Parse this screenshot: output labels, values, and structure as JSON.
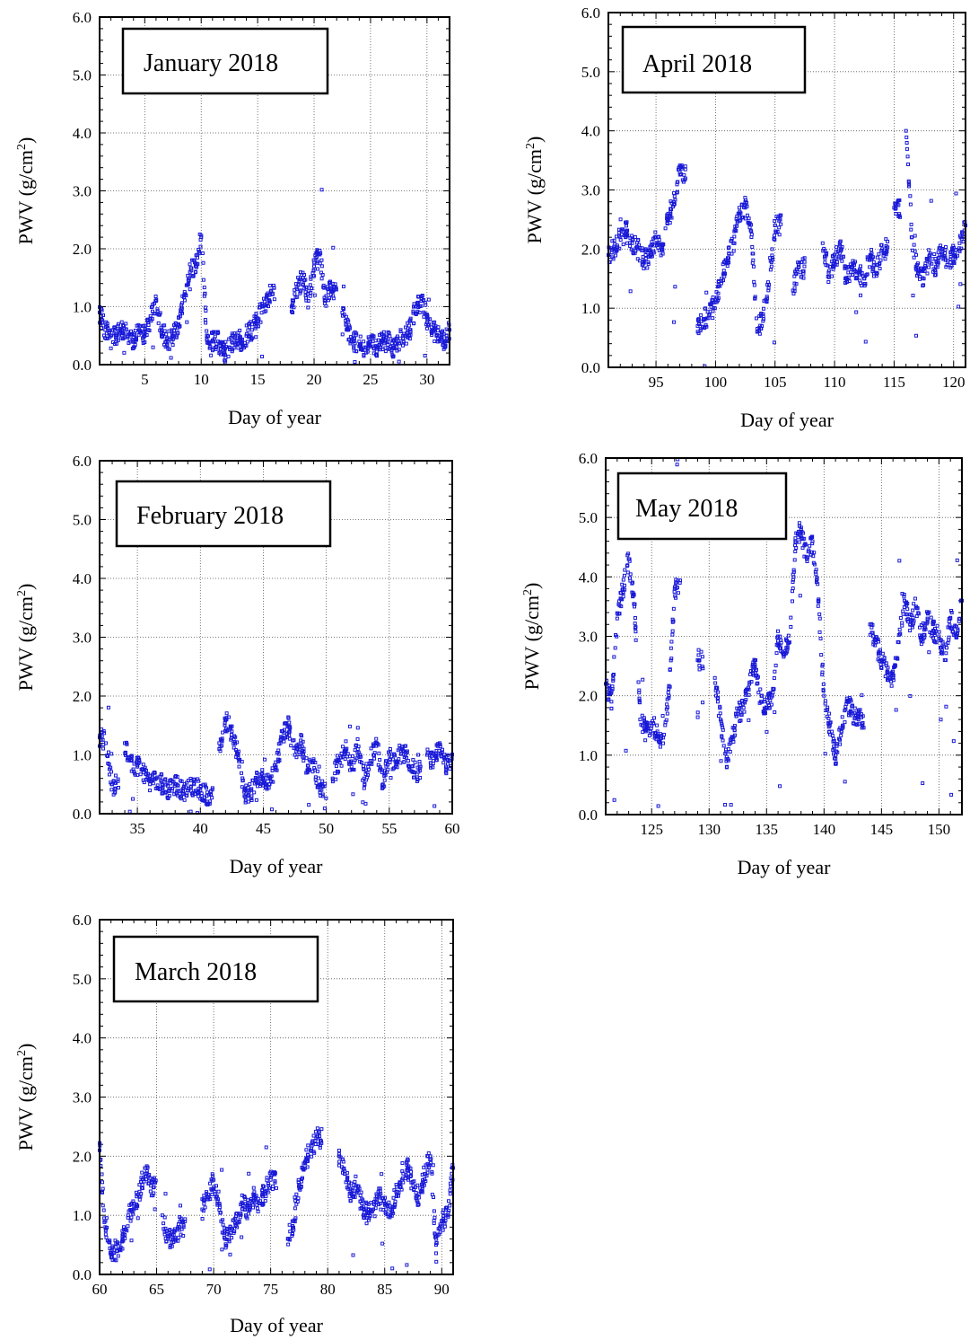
{
  "chart_data": [
    {
      "type": "scatter",
      "title": "January 2018",
      "xlabel": "Day of year",
      "ylabel": "PWV (g/cm",
      "ylabel_superscript": "2",
      "ylabel_suffix": ")",
      "xlim": [
        1,
        32
      ],
      "ylim": [
        0,
        6
      ],
      "xticks": [
        5,
        10,
        15,
        20,
        25,
        30
      ],
      "yticks": [
        "0.0",
        "1.0",
        "2.0",
        "3.0",
        "4.0",
        "5.0",
        "6.0"
      ],
      "grid": true,
      "legend_position": "top-left",
      "color": "#1818d8",
      "series": [
        {
          "x": [
            1,
            1.5,
            2,
            2.5,
            3,
            3.5,
            4,
            4.5,
            5,
            5.5,
            6,
            6.5,
            7,
            7.5,
            8,
            8.5,
            9,
            9.5,
            10,
            10.5,
            11,
            11.5,
            12,
            12.5,
            13,
            13.5,
            14,
            14.5,
            15,
            15.5,
            16,
            16.5,
            17,
            17.5,
            18,
            18.5,
            19,
            19.5,
            20,
            20.5,
            21,
            21.5,
            22,
            22.5,
            23,
            23.5,
            24,
            24.5,
            25,
            25.5,
            26,
            26.5,
            27,
            27.5,
            28,
            28.5,
            29,
            29.5,
            30,
            30.5,
            31,
            31.5,
            32
          ],
          "y": [
            0.9,
            0.6,
            0.5,
            0.5,
            0.6,
            0.5,
            0.4,
            0.6,
            0.5,
            0.8,
            1.1,
            0.6,
            0.4,
            0.5,
            0.7,
            1.2,
            1.6,
            1.7,
            2.2,
            0.5,
            0.4,
            0.4,
            0.2,
            0.3,
            0.5,
            0.4,
            0.5,
            0.6,
            0.8,
            1.0,
            1.2,
            null,
            null,
            null,
            1.0,
            1.3,
            1.5,
            1.1,
            1.7,
            1.9,
            1.1,
            1.3,
            null,
            0.9,
            0.6,
            0.4,
            0.4,
            0.3,
            0.4,
            0.3,
            0.4,
            0.4,
            0.3,
            0.4,
            0.5,
            0.6,
            1.0,
            1.1,
            0.8,
            0.6,
            0.5,
            0.4,
            0.6
          ]
        }
      ]
    },
    {
      "type": "scatter",
      "title": "February 2018",
      "xlabel": "Day of year",
      "ylabel": "PWV (g/cm",
      "ylabel_superscript": "2",
      "ylabel_suffix": ")",
      "xlim": [
        32,
        60
      ],
      "ylim": [
        0,
        6
      ],
      "xticks": [
        35,
        40,
        45,
        50,
        55,
        60
      ],
      "yticks": [
        "0.0",
        "1.0",
        "2.0",
        "3.0",
        "4.0",
        "5.0",
        "6.0"
      ],
      "grid": true,
      "legend_position": "top-left",
      "color": "#1818d8",
      "series": [
        {
          "x": [
            32,
            32.5,
            33,
            33.5,
            34,
            34.5,
            35,
            35.5,
            36,
            36.5,
            37,
            37.5,
            38,
            38.5,
            39,
            39.5,
            40,
            40.5,
            41,
            41.5,
            42,
            42.5,
            43,
            43.5,
            44,
            44.5,
            45,
            45.5,
            46,
            46.5,
            47,
            47.5,
            48,
            48.5,
            49,
            49.5,
            50,
            50.5,
            51,
            51.5,
            52,
            52.5,
            53,
            53.5,
            54,
            54.5,
            55,
            55.5,
            56,
            56.5,
            57,
            57.5,
            58,
            58.5,
            59,
            59.5,
            60
          ],
          "y": [
            1.3,
            1.2,
            0.5,
            null,
            1.2,
            0.9,
            0.8,
            0.7,
            0.5,
            0.6,
            0.5,
            0.4,
            0.5,
            0.4,
            0.4,
            0.5,
            0.4,
            0.3,
            null,
            1.1,
            1.6,
            1.4,
            1.0,
            0.3,
            0.4,
            0.6,
            0.6,
            0.5,
            0.8,
            1.3,
            1.5,
            1.0,
            1.2,
            0.7,
            0.9,
            0.4,
            null,
            0.6,
            0.9,
            1.1,
            0.8,
            1.1,
            0.6,
            0.9,
            1.2,
            0.5,
            1.0,
            0.8,
            1.1,
            0.9,
            0.7,
            null,
            1.0,
            0.9,
            1.2,
            0.8,
            1.0
          ]
        }
      ]
    },
    {
      "type": "scatter",
      "title": "March 2018",
      "xlabel": "Day of year",
      "ylabel": "PWV (g/cm",
      "ylabel_superscript": "2",
      "ylabel_suffix": ")",
      "xlim": [
        60,
        91
      ],
      "ylim": [
        0,
        6
      ],
      "xticks": [
        60,
        65,
        70,
        75,
        80,
        85,
        90
      ],
      "yticks": [
        "0.0",
        "1.0",
        "2.0",
        "3.0",
        "4.0",
        "5.0",
        "6.0"
      ],
      "grid": true,
      "legend_position": "top-left",
      "color": "#1818d8",
      "series": [
        {
          "x": [
            60,
            60.5,
            61,
            61.5,
            62,
            62.5,
            63,
            63.5,
            64,
            64.5,
            65,
            65.5,
            66,
            66.5,
            67,
            67.5,
            68,
            68.5,
            69,
            69.5,
            70,
            70.5,
            71,
            71.5,
            72,
            72.5,
            73,
            73.5,
            74,
            74.5,
            75,
            75.5,
            76,
            76.5,
            77,
            77.5,
            78,
            78.5,
            79,
            79.5,
            80,
            80.5,
            81,
            81.5,
            82,
            82.5,
            83,
            83.5,
            84,
            84.5,
            85,
            85.5,
            86,
            86.5,
            87,
            87.5,
            88,
            88.5,
            89,
            89.5,
            90,
            90.5,
            91
          ],
          "y": [
            2.1,
            0.8,
            0.4,
            0.4,
            0.6,
            1.0,
            1.1,
            1.4,
            1.8,
            1.5,
            null,
            1.0,
            0.6,
            0.6,
            0.8,
            null,
            null,
            null,
            1.1,
            1.3,
            1.6,
            1.2,
            0.6,
            0.7,
            0.9,
            1.2,
            1.1,
            1.3,
            1.2,
            1.4,
            1.6,
            null,
            null,
            0.6,
            0.9,
            1.5,
            1.9,
            2.1,
            2.3,
            null,
            null,
            null,
            2.0,
            1.7,
            1.4,
            1.5,
            1.2,
            1.0,
            1.1,
            1.3,
            1.2,
            1.0,
            1.4,
            1.6,
            1.8,
            1.5,
            1.3,
            1.7,
            2.0,
            0.5,
            0.9,
            1.0,
            1.8
          ]
        }
      ]
    },
    {
      "type": "scatter",
      "title": "April 2018",
      "xlabel": "Day of year",
      "ylabel": "PWV (g/cm",
      "ylabel_superscript": "2",
      "ylabel_suffix": ")",
      "xlim": [
        91,
        121
      ],
      "ylim": [
        0,
        6
      ],
      "xticks": [
        95,
        100,
        105,
        110,
        115,
        120
      ],
      "yticks": [
        "0.0",
        "1.0",
        "2.0",
        "3.0",
        "4.0",
        "5.0",
        "6.0"
      ],
      "grid": true,
      "legend_position": "top-left",
      "color": "#1818d8",
      "series": [
        {
          "x": [
            91,
            91.5,
            92,
            92.5,
            93,
            93.5,
            94,
            94.5,
            95,
            95.5,
            96,
            96.5,
            97,
            97.5,
            98,
            98.5,
            99,
            99.5,
            100,
            100.5,
            101,
            101.5,
            102,
            102.5,
            103,
            103.5,
            104,
            104.5,
            105,
            105.5,
            106,
            106.5,
            107,
            107.5,
            108,
            108.5,
            109,
            109.5,
            110,
            110.5,
            111,
            111.5,
            112,
            112.5,
            113,
            113.5,
            114,
            114.5,
            115,
            115.5,
            116,
            116.5,
            117,
            117.5,
            118,
            118.5,
            119,
            119.5,
            120,
            120.5,
            121
          ],
          "y": [
            1.9,
            2.0,
            2.2,
            2.3,
            2.1,
            2.0,
            1.8,
            1.9,
            2.2,
            2.0,
            2.5,
            2.8,
            3.3,
            null,
            null,
            0.7,
            0.8,
            0.9,
            1.1,
            1.5,
            1.8,
            2.1,
            2.6,
            2.7,
            2.3,
            0.6,
            0.9,
            1.4,
            2.4,
            null,
            null,
            1.3,
            1.7,
            null,
            null,
            null,
            2.1,
            1.6,
            1.8,
            2.0,
            1.5,
            1.7,
            1.6,
            1.5,
            1.9,
            1.6,
            2.0,
            null,
            2.7,
            null,
            4.0,
            2.2,
            1.6,
            1.5,
            1.9,
            1.7,
            2.0,
            1.8,
            1.9,
            2.1,
            2.4
          ]
        }
      ]
    },
    {
      "type": "scatter",
      "title": "May 2018",
      "xlabel": "Day of year",
      "ylabel": "PWV (g/cm",
      "ylabel_superscript": "2",
      "ylabel_suffix": ")",
      "xlim": [
        121,
        152
      ],
      "ylim": [
        0,
        6
      ],
      "xticks": [
        125,
        130,
        135,
        140,
        145,
        150
      ],
      "yticks": [
        "0.0",
        "1.0",
        "2.0",
        "3.0",
        "4.0",
        "5.0",
        "6.0"
      ],
      "grid": true,
      "legend_position": "top-left",
      "color": "#1818d8",
      "series": [
        {
          "x": [
            121,
            121.5,
            122,
            122.5,
            123,
            123.5,
            124,
            124.5,
            125,
            125.5,
            126,
            126.5,
            127,
            127.5,
            128,
            128.5,
            129,
            129.5,
            130,
            130.5,
            131,
            131.5,
            132,
            132.5,
            133,
            133.5,
            134,
            134.5,
            135,
            135.5,
            136,
            136.5,
            137,
            137.5,
            138,
            138.5,
            139,
            139.5,
            140,
            140.5,
            141,
            141.5,
            142,
            142.5,
            143,
            143.5,
            144,
            144.5,
            145,
            145.5,
            146,
            146.5,
            147,
            147.5,
            148,
            148.5,
            149,
            149.5,
            150,
            150.5,
            151,
            151.5,
            152
          ],
          "y": [
            2.2,
            1.9,
            3.3,
            3.8,
            4.3,
            3.5,
            1.6,
            1.4,
            1.5,
            1.4,
            1.2,
            2.0,
            3.8,
            null,
            null,
            null,
            2.6,
            null,
            null,
            2.3,
            1.6,
            0.9,
            1.3,
            1.7,
            1.8,
            2.2,
            2.5,
            1.9,
            1.8,
            2.0,
            3.0,
            2.7,
            2.9,
            4.6,
            4.8,
            4.3,
            4.6,
            3.6,
            2.0,
            1.5,
            1.0,
            1.4,
            1.9,
            1.7,
            1.6,
            null,
            3.2,
            2.9,
            2.6,
            2.4,
            2.3,
            2.9,
            3.6,
            3.2,
            3.5,
            3.0,
            3.3,
            3.1,
            3.0,
            2.6,
            3.3,
            3.0,
            3.6
          ]
        }
      ]
    }
  ]
}
